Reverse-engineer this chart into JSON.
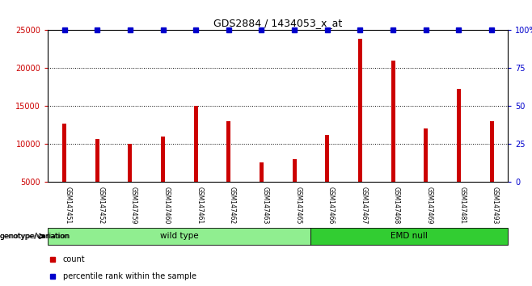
{
  "title": "GDS2884 / 1434053_x_at",
  "samples": [
    "GSM147451",
    "GSM147452",
    "GSM147459",
    "GSM147460",
    "GSM147461",
    "GSM147462",
    "GSM147463",
    "GSM147465",
    "GSM147466",
    "GSM147467",
    "GSM147468",
    "GSM147469",
    "GSM147481",
    "GSM147493"
  ],
  "counts": [
    12600,
    10600,
    10000,
    11000,
    15000,
    13000,
    7500,
    8000,
    11200,
    23800,
    21000,
    12000,
    17200,
    13000
  ],
  "percentiles": [
    100,
    100,
    100,
    100,
    100,
    100,
    100,
    100,
    100,
    100,
    100,
    100,
    100,
    100
  ],
  "groups": [
    {
      "label": "wild type",
      "start": 0,
      "end": 8,
      "color": "#90EE90"
    },
    {
      "label": "EMD null",
      "start": 8,
      "end": 14,
      "color": "#32CD32"
    }
  ],
  "bar_color": "#CC0000",
  "percentile_color": "#0000CC",
  "ylim_left": [
    5000,
    25000
  ],
  "ylim_right": [
    0,
    100
  ],
  "yticks_left": [
    5000,
    10000,
    15000,
    20000,
    25000
  ],
  "yticks_right": [
    0,
    25,
    50,
    75,
    100
  ],
  "background_color": "#FFFFFF",
  "label_area_color": "#C8C8C8",
  "legend_count_color": "#CC0000",
  "legend_pct_color": "#0000CC",
  "genotype_label": "genotype/variation",
  "legend_count": "count",
  "legend_pct": "percentile rank within the sample",
  "bar_width": 0.12
}
